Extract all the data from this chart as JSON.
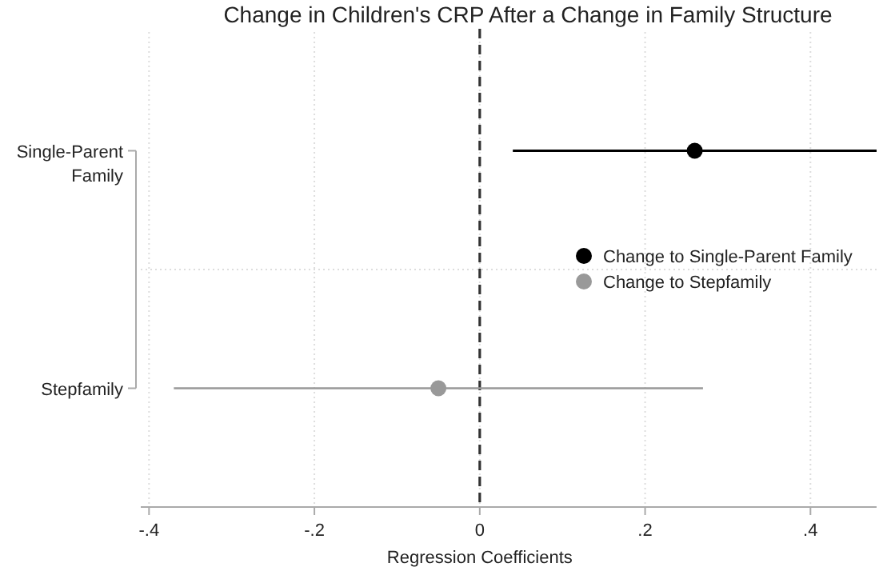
{
  "chart_data": {
    "type": "scatter",
    "orientation": "horizontal",
    "title": "Change in Children's CRP After a Change in Family Structure",
    "xlabel": "Regression Coefficients",
    "categories": [
      "Single-Parent Family",
      "Stepfamily"
    ],
    "series": [
      {
        "name": "Change to Single-Parent Family",
        "color": "#000000",
        "values": [
          0.26,
          null
        ],
        "errors": [
          [
            0.04,
            0.48
          ],
          null
        ]
      },
      {
        "name": "Change to Stepfamily",
        "color": "#999999",
        "values": [
          null,
          -0.05
        ],
        "errors": [
          null,
          [
            -0.37,
            0.27
          ]
        ]
      }
    ],
    "xlim": [
      -0.41,
      0.48
    ],
    "xticks": [
      {
        "value": -0.4,
        "label": "-.4"
      },
      {
        "value": -0.2,
        "label": "-.2"
      },
      0,
      {
        "value": 0.2,
        "label": ".2"
      },
      {
        "value": 0.4,
        "label": ".4"
      }
    ],
    "ref_lines": [
      {
        "axis": "x",
        "value": 0,
        "line_style": "dashed",
        "color": "#333333"
      }
    ],
    "grid": true,
    "legend": "right",
    "marker": "circle"
  }
}
